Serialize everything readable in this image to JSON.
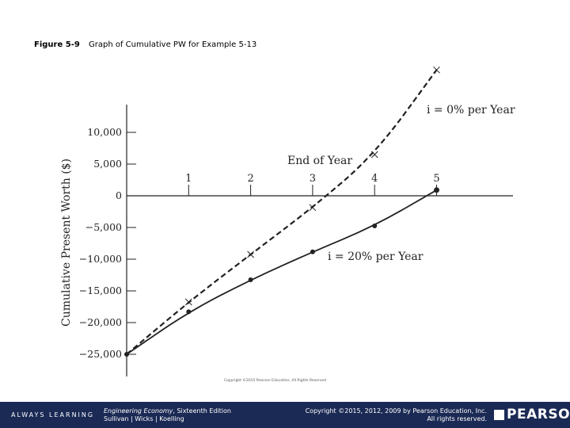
{
  "caption": {
    "figure_label": "Figure 5-9",
    "figure_title": "Graph of Cumulative PW for Example 5-13"
  },
  "chart_data": {
    "type": "line",
    "ylabel": "Cumulative Present Worth ($)",
    "x_axis_label": "End of Year",
    "x": [
      0,
      1,
      2,
      3,
      4,
      5
    ],
    "x_ticks": [
      "1",
      "2",
      "3",
      "4",
      "5"
    ],
    "y_ticks": [
      "10,000",
      "5,000",
      "0",
      "−5,000",
      "−10,000",
      "−15,000",
      "−20,000",
      "−25,000"
    ],
    "y_tick_values": [
      10000,
      5000,
      0,
      -5000,
      -10000,
      -15000,
      -20000,
      -25000
    ],
    "ylim": [
      -25000,
      10000
    ],
    "series": [
      {
        "name": "i = 0% per Year",
        "style": "dashed",
        "marker": "x",
        "values": [
          -25000,
          -16750,
          -9250,
          -1850,
          6500,
          19850
        ]
      },
      {
        "name": "i = 20% per Year",
        "style": "solid",
        "marker": "dot",
        "values": [
          -25000,
          -18300,
          -13250,
          -8850,
          -4750,
          900
        ]
      }
    ],
    "grid": false
  },
  "small_copyright": "Copyright ©2015 Pearson Education, All Rights Reserved",
  "footer": {
    "tagline": "ALWAYS LEARNING",
    "book_title": "Engineering Economy",
    "book_edition": ", Sixteenth Edition",
    "book_authors": "Sullivan | Wicks | Koelling",
    "copyright_line1": "Copyright ©2015, 2012, 2009 by Pearson Education, Inc.",
    "copyright_line2": "All rights reserved.",
    "logo": "PEARSON"
  },
  "colors": {
    "footer_bg": "#1b2a55",
    "line": "#222222"
  }
}
